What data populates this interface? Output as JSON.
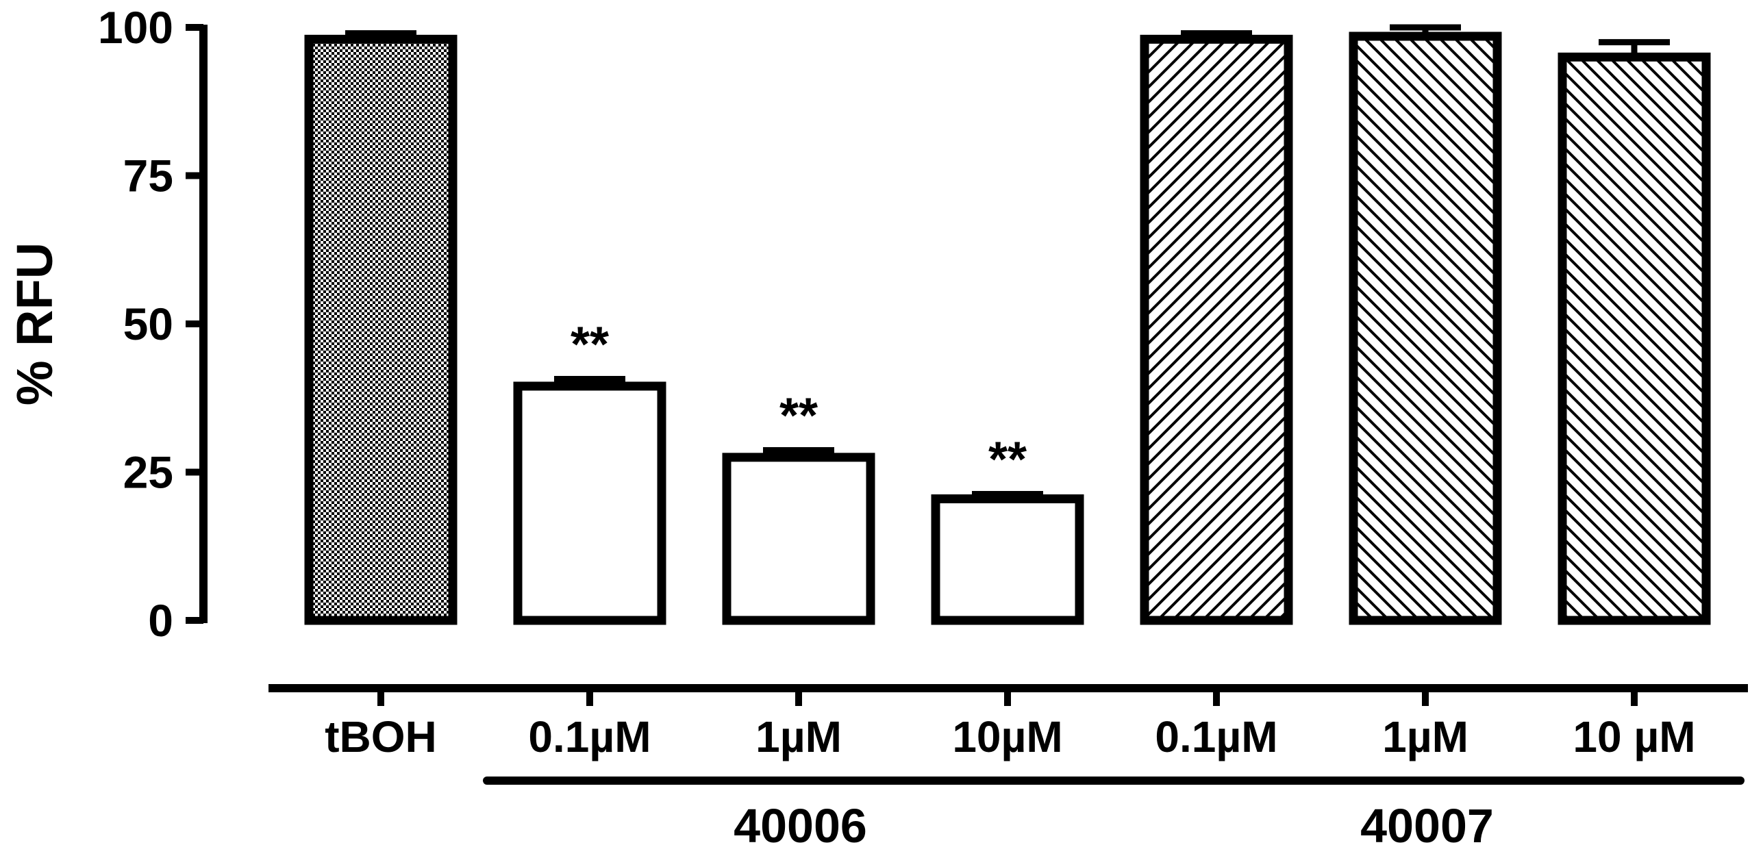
{
  "chart_data": {
    "type": "bar",
    "ylabel": "% RFU",
    "ylim": [
      0,
      100
    ],
    "yticks": [
      0,
      25,
      50,
      75,
      100
    ],
    "categories": [
      "tBOH",
      "0.1µM",
      "1µM",
      "10µM",
      "0.1µM",
      "1µM",
      "10 µM"
    ],
    "values": [
      98,
      39.5,
      27.5,
      20.5,
      98,
      98.5,
      95
    ],
    "errors": [
      1,
      1.2,
      1.2,
      0.8,
      1,
      1.5,
      2.5
    ],
    "patterns": [
      "checker",
      "none",
      "none",
      "none",
      "diag-up",
      "diag-down",
      "diag-down"
    ],
    "annotations": [
      "",
      "**",
      "**",
      "**",
      "",
      "",
      ""
    ],
    "groups": [
      {
        "label": "40006",
        "start": 1,
        "end": 3
      },
      {
        "label": "40007",
        "start": 4,
        "end": 6
      }
    ],
    "grid": false,
    "legend": "none"
  }
}
